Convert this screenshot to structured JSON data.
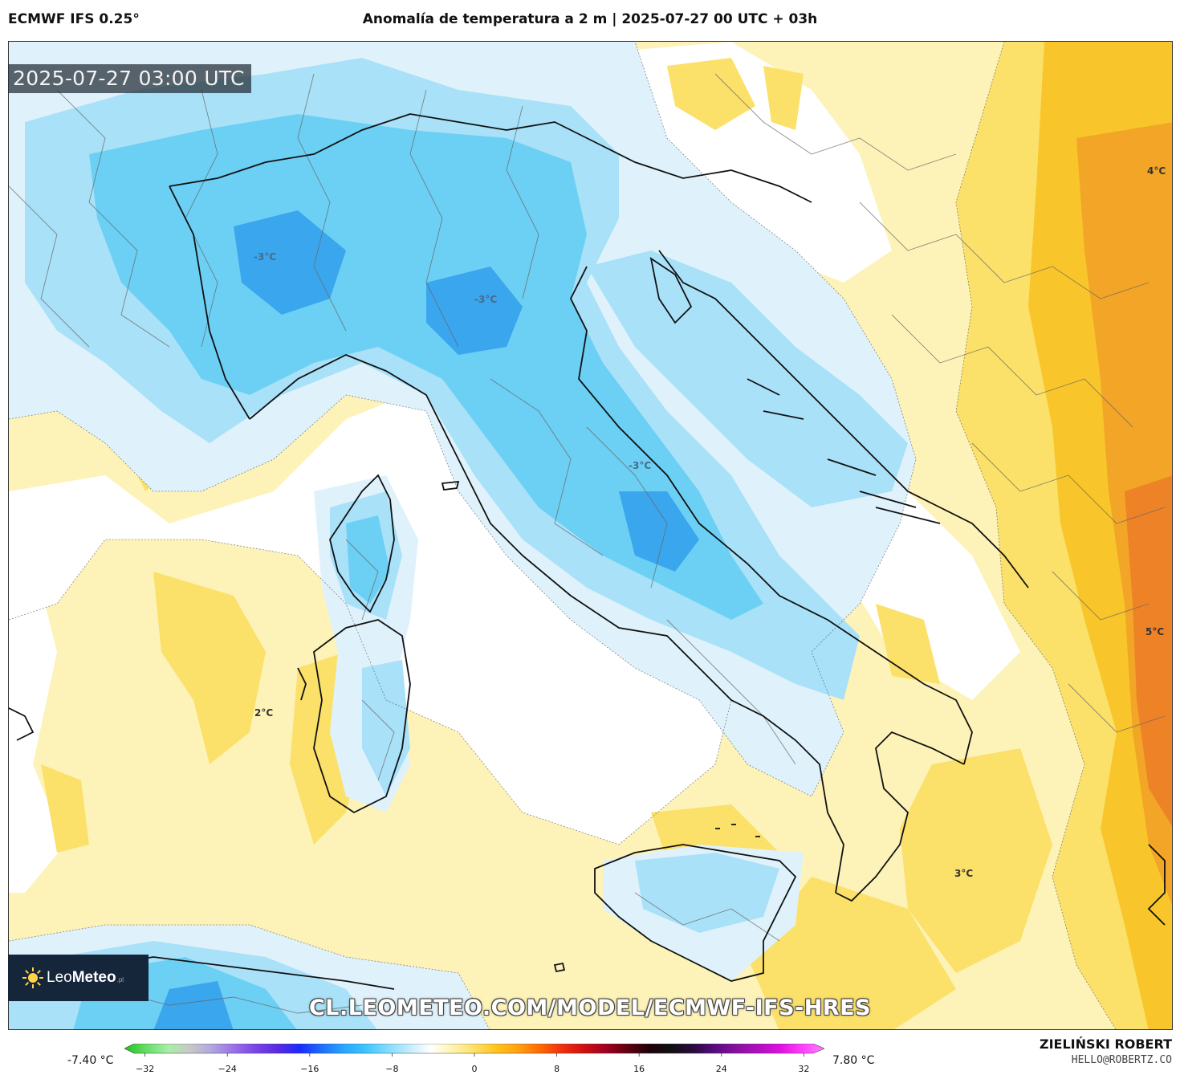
{
  "header": {
    "model": "ECMWF IFS 0.25°",
    "title": "Anomalía de temperatura a 2 m | 2025-07-27 00 UTC + 03h"
  },
  "map": {
    "valid_time": "2025-07-27 03:00 UTC",
    "contour_labels": [
      {
        "text": "-3°C",
        "id": "alps"
      },
      {
        "text": "-3°C",
        "id": "po-valley"
      },
      {
        "text": "-3°C",
        "id": "central-italy"
      },
      {
        "text": "2°C",
        "id": "sardinia-west"
      },
      {
        "text": "3°C",
        "id": "ionian"
      },
      {
        "text": "4°C",
        "id": "hungary"
      },
      {
        "text": "5°C",
        "id": "balkans"
      }
    ],
    "watermark": "CL.LEOMETEO.COM/MODEL/ECMWF-IFS-HRES",
    "logo": {
      "name_light": "Leo",
      "name_bold": "Meteo",
      "suffix": ".pl"
    }
  },
  "colorbar": {
    "min_label": "-7.40 °C",
    "max_label": "7.80 °C",
    "ticks": [
      "−32",
      "−24",
      "−16",
      "−8",
      "0",
      "8",
      "16",
      "24",
      "32"
    ],
    "tick_values": [
      -32,
      -24,
      -16,
      -8,
      0,
      8,
      16,
      24,
      32
    ],
    "range": [
      -34,
      34
    ],
    "colors": [
      "#1ec21e",
      "#66dd66",
      "#a8eea8",
      "#c8c8c8",
      "#b0a6e0",
      "#9a70e8",
      "#7a44e8",
      "#5a2ae0",
      "#1a2aff",
      "#1e6cff",
      "#27a6ff",
      "#3cc4ff",
      "#7fdcff",
      "#c2ecff",
      "#ffffff",
      "#fff3b0",
      "#ffe066",
      "#ffc41c",
      "#ffa010",
      "#ff6a00",
      "#f03010",
      "#d01010",
      "#a00020",
      "#600010",
      "#200008",
      "#101010",
      "#2a0a40",
      "#5a0a80",
      "#8a10a0",
      "#b010c0",
      "#e010e0",
      "#ff40ff",
      "#ff80ff"
    ]
  },
  "credit": {
    "name": "ZIELIŃSKI ROBERT",
    "email": "HELLO@ROBERTZ.CO"
  },
  "palette": {
    "cold_light": "#dff2fb",
    "cold_mid": "#a9e1f8",
    "cold_strong": "#6ccff4",
    "cold_deep": "#3aa6ee",
    "neutral": "#ffffff",
    "warm_light": "#fdf3b8",
    "warm_mid": "#fbe06a",
    "warm_strong": "#f8c62a",
    "warm_deep": "#f2a526",
    "warm_hot": "#ee8226"
  }
}
